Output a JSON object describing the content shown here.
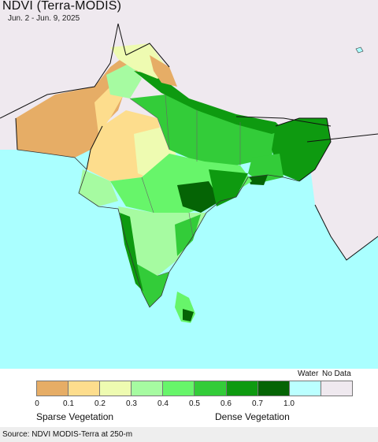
{
  "map": {
    "title": "NDVI (Terra-MODIS)",
    "date_range": "Jun. 2 - Jun. 9, 2025",
    "colors": {
      "ocean": "#aaffff",
      "no_data_land": "#efe9ef",
      "border": "#111111"
    }
  },
  "legend": {
    "water_label": "Water",
    "nodata_label": "No Data",
    "classes": [
      {
        "color": "#e6ad66"
      },
      {
        "color": "#fddd8d"
      },
      {
        "color": "#eefbb1"
      },
      {
        "color": "#a6fba1"
      },
      {
        "color": "#67f56a"
      },
      {
        "color": "#33cc39"
      },
      {
        "color": "#0e9a10"
      },
      {
        "color": "#056405"
      },
      {
        "color": "#bbffff"
      },
      {
        "color": "#efe9ef"
      }
    ],
    "ticks": [
      "0",
      "0.1",
      "0.2",
      "0.3",
      "0.4",
      "0.5",
      "0.6",
      "0.7",
      "1.0"
    ],
    "left_caption": "Sparse Vegetation",
    "right_caption": "Dense Vegetation"
  },
  "footer": {
    "source": "Source: NDVI MODIS-Terra at 250-m"
  }
}
